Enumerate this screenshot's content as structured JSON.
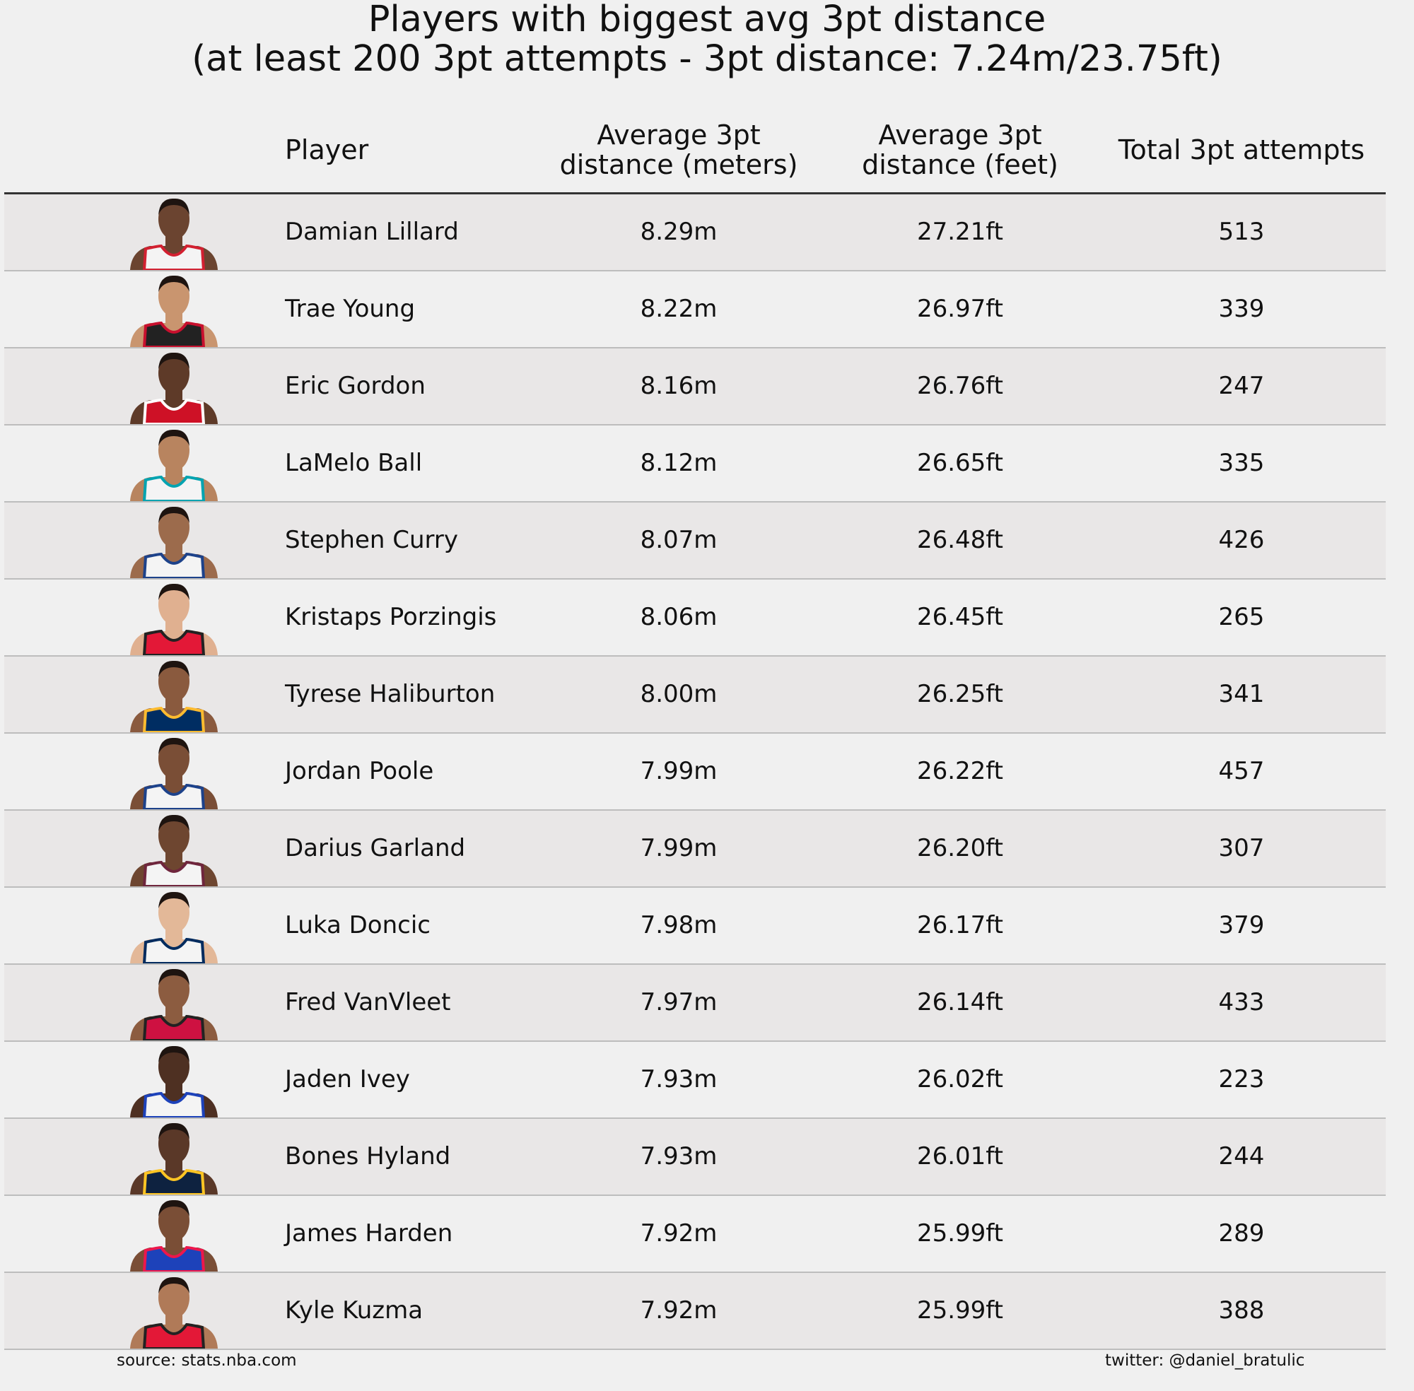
{
  "chart_data": {
    "type": "table",
    "title": [
      "Players with biggest avg 3pt distance",
      "(at least 200 3pt attempts - 3pt distance: 7.24m/23.75ft)"
    ],
    "columns": [
      "Player",
      "Average 3pt\ndistance (meters)",
      "Average 3pt\ndistance (feet)",
      "Total 3pt attempts"
    ],
    "header_lines": {
      "player": "Player",
      "meters": [
        "Average 3pt",
        "distance (meters)"
      ],
      "feet": [
        "Average 3pt",
        "distance (feet)"
      ],
      "attempts": "Total 3pt attempts"
    },
    "rows": [
      {
        "player": "Damian Lillard",
        "meters": "8.29m",
        "feet": "27.21ft",
        "attempts": "513",
        "jersey": "#f4f4f4",
        "trim": "#d22030",
        "skin": "#6b4430"
      },
      {
        "player": "Trae Young",
        "meters": "8.22m",
        "feet": "26.97ft",
        "attempts": "339",
        "jersey": "#222222",
        "trim": "#c8102e",
        "skin": "#c9956f"
      },
      {
        "player": "Eric Gordon",
        "meters": "8.16m",
        "feet": "26.76ft",
        "attempts": "247",
        "jersey": "#ce1126",
        "trim": "#ffffff",
        "skin": "#5e3a28"
      },
      {
        "player": "LaMelo Ball",
        "meters": "8.12m",
        "feet": "26.65ft",
        "attempts": "335",
        "jersey": "#f4f4f4",
        "trim": "#00a3b0",
        "skin": "#b8845f"
      },
      {
        "player": "Stephen Curry",
        "meters": "8.07m",
        "feet": "26.48ft",
        "attempts": "426",
        "jersey": "#f4f4f4",
        "trim": "#1d428a",
        "skin": "#9c6b4c"
      },
      {
        "player": "Kristaps Porzingis",
        "meters": "8.06m",
        "feet": "26.45ft",
        "attempts": "265",
        "jersey": "#e31837",
        "trim": "#222222",
        "skin": "#e0b090"
      },
      {
        "player": "Tyrese Haliburton",
        "meters": "8.00m",
        "feet": "26.25ft",
        "attempts": "341",
        "jersey": "#002d62",
        "trim": "#fdbb30",
        "skin": "#8a5a3e"
      },
      {
        "player": "Jordan Poole",
        "meters": "7.99m",
        "feet": "26.22ft",
        "attempts": "457",
        "jersey": "#f4f4f4",
        "trim": "#1d428a",
        "skin": "#7a4e36"
      },
      {
        "player": "Darius Garland",
        "meters": "7.99m",
        "feet": "26.20ft",
        "attempts": "307",
        "jersey": "#f4f4f4",
        "trim": "#6f263d",
        "skin": "#6e4630"
      },
      {
        "player": "Luka Doncic",
        "meters": "7.98m",
        "feet": "26.17ft",
        "attempts": "379",
        "jersey": "#f4f4f4",
        "trim": "#002b5e",
        "skin": "#e3b898"
      },
      {
        "player": "Fred VanVleet",
        "meters": "7.97m",
        "feet": "26.14ft",
        "attempts": "433",
        "jersey": "#ce1141",
        "trim": "#222222",
        "skin": "#8c5c40"
      },
      {
        "player": "Jaden Ivey",
        "meters": "7.93m",
        "feet": "26.02ft",
        "attempts": "223",
        "jersey": "#f4f4f4",
        "trim": "#1d42ba",
        "skin": "#4e3022"
      },
      {
        "player": "Bones Hyland",
        "meters": "7.93m",
        "feet": "26.01ft",
        "attempts": "244",
        "jersey": "#0e2240",
        "trim": "#fec524",
        "skin": "#5a3828"
      },
      {
        "player": "James Harden",
        "meters": "7.92m",
        "feet": "25.99ft",
        "attempts": "289",
        "jersey": "#1d42ba",
        "trim": "#ed174c",
        "skin": "#7a4e36"
      },
      {
        "player": "Kyle Kuzma",
        "meters": "7.92m",
        "feet": "25.99ft",
        "attempts": "388",
        "jersey": "#e31837",
        "trim": "#222222",
        "skin": "#b07a58"
      }
    ]
  },
  "footer": {
    "source": "source: stats.nba.com",
    "credit": "twitter: @daniel_bratulic"
  },
  "colors": {
    "background": "#f0f0f0",
    "row_alt": "#e9e7e7",
    "separator": "#bdbdbd",
    "header_line": "#333333"
  }
}
